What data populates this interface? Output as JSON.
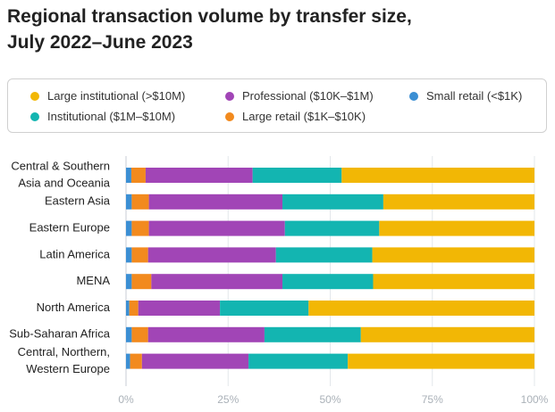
{
  "chart_data": {
    "type": "bar",
    "orientation": "horizontal",
    "stacked": "percent",
    "title_lines": [
      "Regional transaction volume by transfer size,",
      "July 2022–June 2023"
    ],
    "categories": [
      [
        "Central & Southern",
        "Asia and Oceania"
      ],
      [
        "Eastern Asia"
      ],
      [
        "Eastern Europe"
      ],
      [
        "Latin America"
      ],
      [
        "MENA"
      ],
      [
        "North America"
      ],
      [
        "Sub-Saharan Africa"
      ],
      [
        "Central, Northern,",
        "Western Europe"
      ]
    ],
    "series": [
      {
        "name": "Small retail (<$1K)",
        "color": "#3b8fd4",
        "values": [
          1.3,
          1.4,
          1.4,
          1.4,
          1.4,
          0.8,
          1.4,
          1.0
        ]
      },
      {
        "name": "Large retail ($1K–$10K)",
        "color": "#f28a1e",
        "values": [
          3.5,
          4.2,
          4.2,
          4.0,
          4.8,
          2.2,
          4.0,
          2.9
        ]
      },
      {
        "name": "Professional ($10K–$1M)",
        "color": "#a145b6",
        "values": [
          26.2,
          32.7,
          33.3,
          31.3,
          32.1,
          20.0,
          28.5,
          26.1
        ]
      },
      {
        "name": "Institutional ($1M–$10M)",
        "color": "#13b5b1",
        "values": [
          21.8,
          24.7,
          23.1,
          23.6,
          22.2,
          21.7,
          23.6,
          24.3
        ]
      },
      {
        "name": "Large institutional (>$10M)",
        "color": "#f2b705",
        "values": [
          47.2,
          37.0,
          38.0,
          39.7,
          39.5,
          55.3,
          42.5,
          45.7
        ]
      }
    ],
    "legend_order": [
      4,
      2,
      0,
      3,
      1
    ],
    "x_ticks": [
      0,
      25,
      50,
      75,
      100
    ],
    "x_tick_labels": [
      "0%",
      "25%",
      "50%",
      "75%",
      "100%"
    ],
    "xlim": [
      0,
      100
    ],
    "grid": true,
    "legend_position": "top"
  }
}
